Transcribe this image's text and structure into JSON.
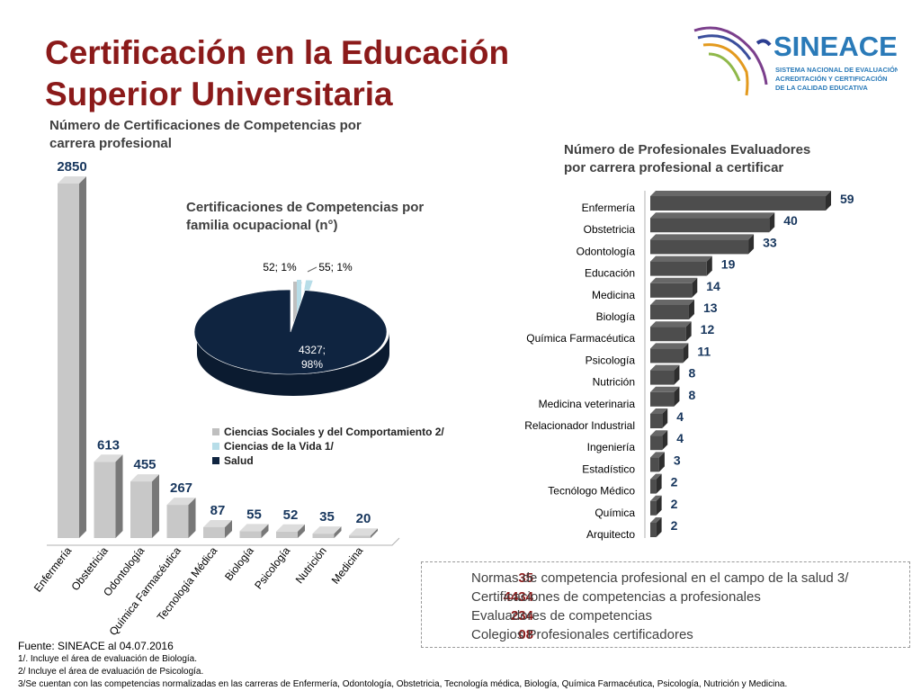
{
  "title": "Certificación en la Educación Superior Universitaria",
  "logo": {
    "brand": "SINEACE",
    "tagline": [
      "SISTEMA NACIONAL DE EVALUACIÓN,",
      "ACREDITACIÓN Y CERTIFICACIÓN",
      "DE LA CALIDAD EDUCATIVA"
    ]
  },
  "chart_titles": {
    "vbar": [
      "Número de Certificaciones de Competencias por",
      "carrera profesional"
    ],
    "pie": [
      "Certificaciones de Competencias por",
      "familia ocupacional  (n°)"
    ],
    "hbar": [
      "Número de Profesionales Evaluadores",
      "por carrera profesional a certificar"
    ]
  },
  "chart_data": [
    {
      "type": "bar",
      "title": "Número de Certificaciones de Competencias por carrera profesional",
      "categories": [
        "Enfermería",
        "Obstetricia",
        "Odontología",
        "Química Farmacéutica",
        "Tecnología Médica",
        "Biología",
        "Psicología",
        "Nutrición",
        "Medicina"
      ],
      "values": [
        2850,
        613,
        455,
        267,
        87,
        55,
        52,
        35,
        20
      ],
      "ylim": [
        0,
        2850
      ],
      "grid": false,
      "colors": {
        "bar": "#c8c8c8",
        "label": "#17365d"
      }
    },
    {
      "type": "pie",
      "title": "Certificaciones de Competencias por familia ocupacional  (n°)",
      "slices": [
        {
          "name": "Ciencias Sociales y del Comportamiento 2/",
          "value": 52,
          "percent": 1,
          "label": "52; 1%",
          "color": "#bfbfbf"
        },
        {
          "name": "Ciencias de la Vida 1/",
          "value": 55,
          "percent": 1,
          "label": "55; 1%",
          "color": "#b7dde8"
        },
        {
          "name": "Salud",
          "value": 4327,
          "percent": 98,
          "label": "4327;",
          "label2": "98%",
          "color": "#0f2440"
        }
      ],
      "legend_position": "bottom"
    },
    {
      "type": "bar",
      "orientation": "horizontal",
      "title": "Número de Profesionales Evaluadores por carrera profesional a certificar",
      "categories": [
        "Enfermería",
        "Obstetricia",
        "Odontología",
        "Educación",
        "Medicina",
        "Biología",
        "Química Farmacéutica",
        "Psicología",
        "Nutrición",
        "Medicina veterinaria",
        "Relacionador Industrial",
        "Ingeniería",
        "Estadístico",
        "Tecnólogo Médico",
        "Química",
        "Arquitecto"
      ],
      "values": [
        59,
        40,
        33,
        19,
        14,
        13,
        12,
        11,
        8,
        8,
        4,
        4,
        3,
        2,
        2,
        2
      ],
      "xlim": [
        0,
        59
      ],
      "grid": false,
      "colors": {
        "bar": "#4d4d4d",
        "label": "#17365d"
      }
    }
  ],
  "summary": [
    {
      "value": "35",
      "text": "Normas de competencia profesional en el campo de la salud 3/"
    },
    {
      "value": "4434",
      "text": "Certificaciones de competencias a profesionales"
    },
    {
      "value": "234",
      "text": "Evaluadores de competencias"
    },
    {
      "value": "08",
      "text": "Colegios Profesionales certificadores"
    }
  ],
  "footer": {
    "source": "Fuente: SINEACE al  04.07.2016",
    "notes": [
      "1/. Incluye  el área de evaluación de Biología.",
      "2/ Incluye  el área  de evaluación de Psicología.",
      "3/Se cuentan con las competencias normalizadas en las carreras de Enfermería, Odontología, Obstetricia, Tecnología médica, Biología, Química Farmacéutica, Psicología, Nutrición y Medicina."
    ]
  }
}
